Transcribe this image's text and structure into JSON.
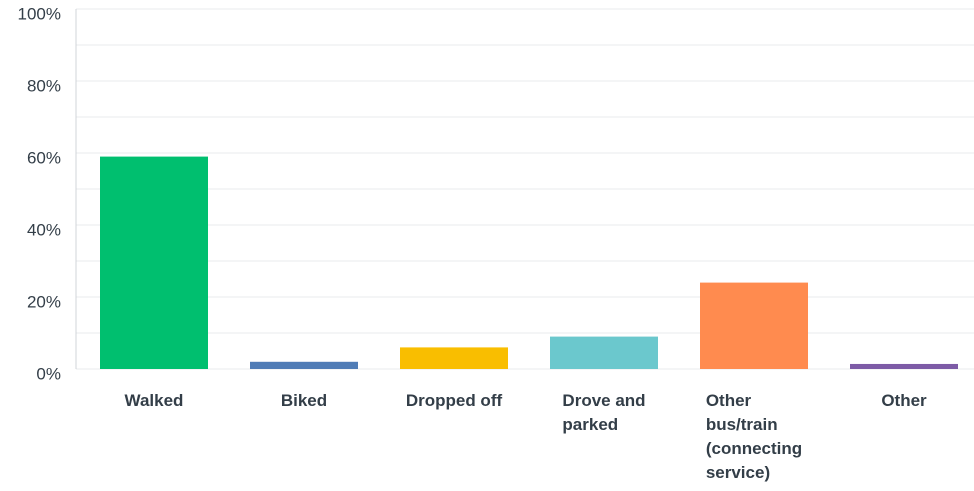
{
  "chart_data": {
    "type": "bar",
    "categories": [
      "Walked",
      "Biked",
      "Dropped off",
      "Drove and parked",
      "Other bus/train (connecting service)",
      "Other"
    ],
    "values": [
      59,
      2,
      6,
      9,
      24,
      1.4
    ],
    "colors": [
      "#00bf6f",
      "#507cb6",
      "#f9be00",
      "#6bc8cd",
      "#ff8b4f",
      "#7d5ba6"
    ],
    "ylim": [
      0,
      100
    ],
    "yticks": [
      {
        "value": 0,
        "label": "0%"
      },
      {
        "value": 20,
        "label": "20%"
      },
      {
        "value": 40,
        "label": "40%"
      },
      {
        "value": 60,
        "label": "60%"
      },
      {
        "value": 80,
        "label": "80%"
      },
      {
        "value": 100,
        "label": "100%"
      }
    ],
    "minor_yticks": [
      10,
      30,
      50,
      70,
      90
    ],
    "grid": true
  }
}
